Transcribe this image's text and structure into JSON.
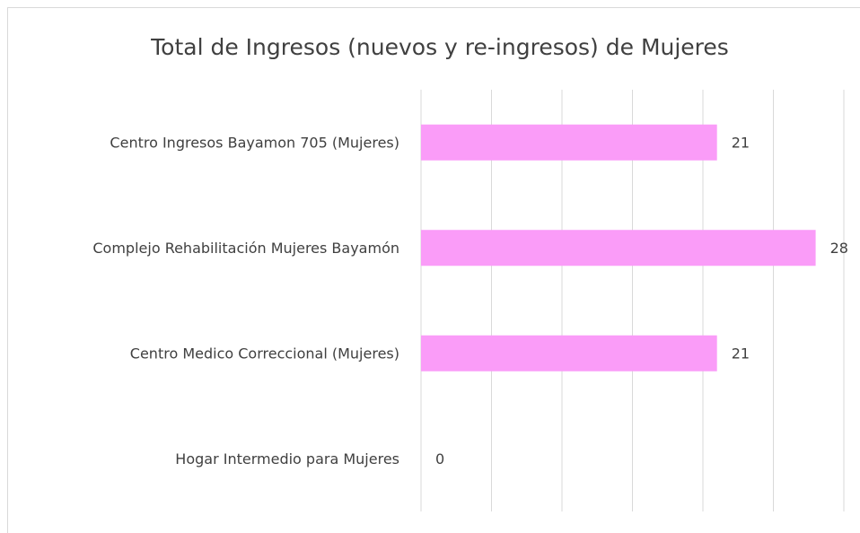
{
  "chart_data": {
    "type": "barh",
    "title": "Total de Ingresos (nuevos y re-ingresos) de Mujeres",
    "categories": [
      "Centro Ingresos Bayamon 705 (Mujeres)",
      "Complejo Rehabilitación Mujeres Bayamón",
      "Centro Medico Correccional (Mujeres)",
      "Hogar Intermedio para Mujeres"
    ],
    "values": [
      21,
      28,
      21,
      0
    ],
    "color": "#fa9cf8",
    "xlim": [
      0,
      30
    ],
    "xticks": [
      0,
      5,
      10,
      15,
      20,
      25,
      30
    ],
    "grid": true
  }
}
